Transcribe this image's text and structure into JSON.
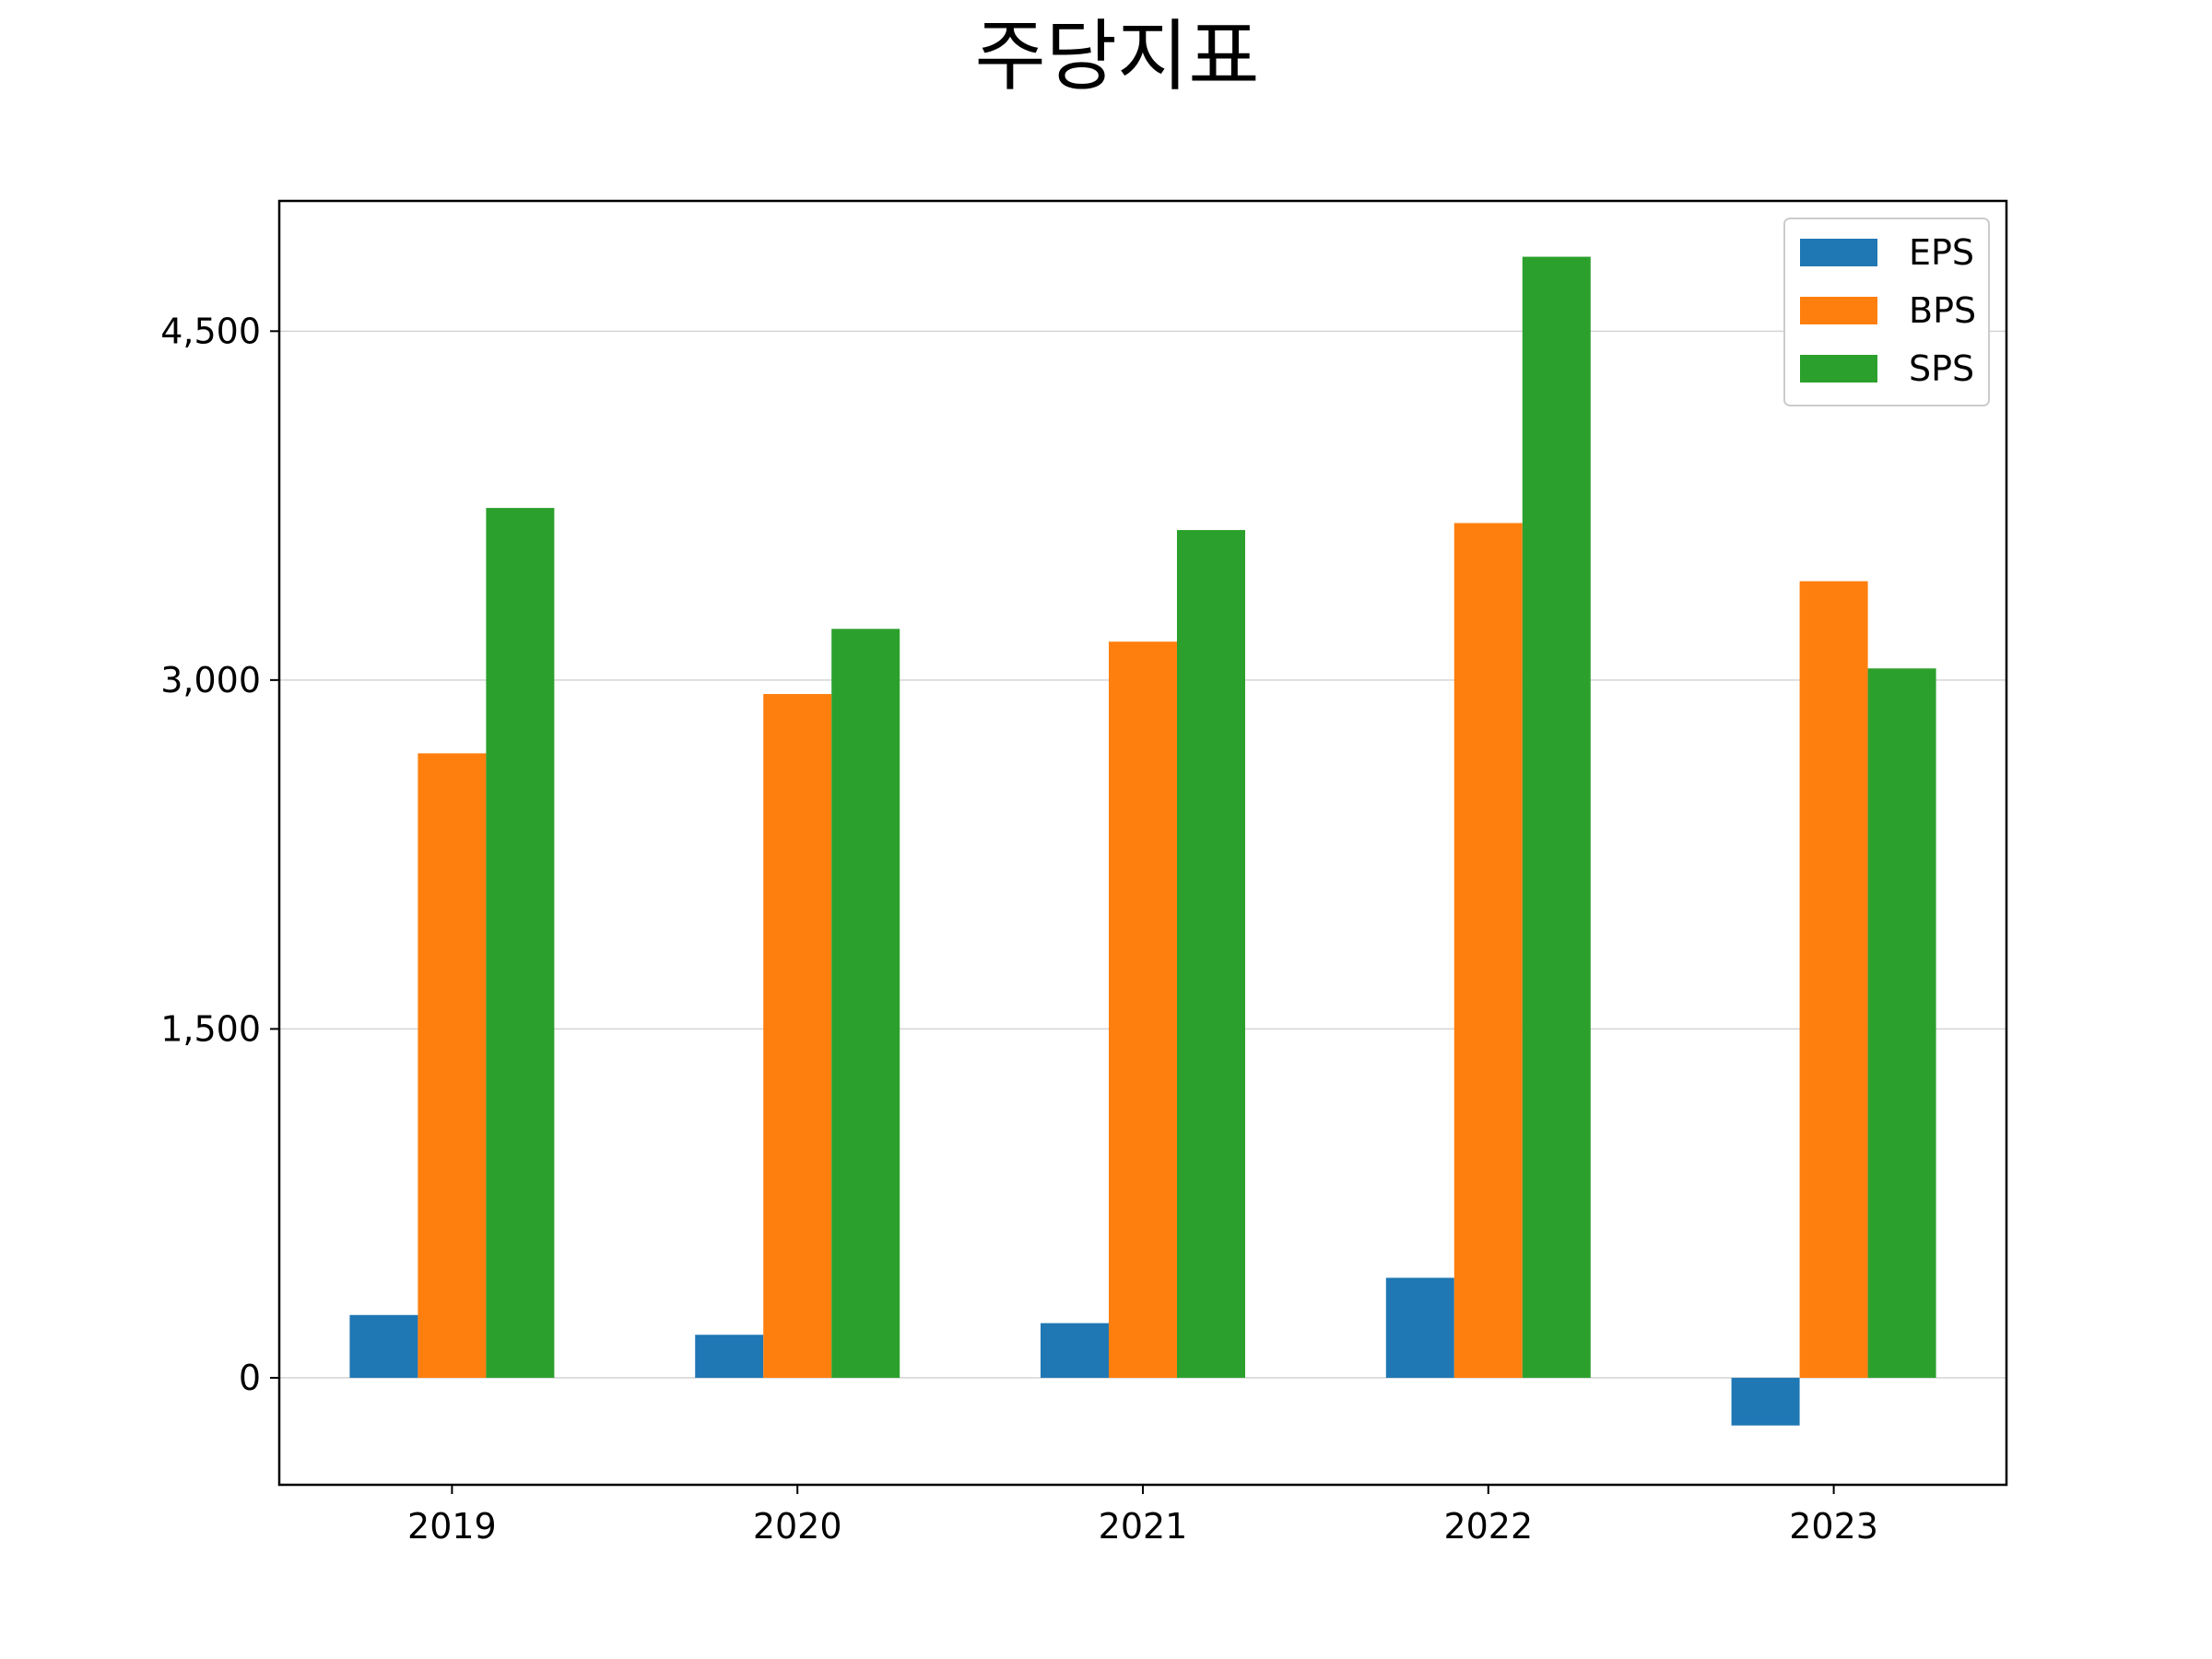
{
  "chart_data": {
    "type": "bar",
    "title": "주당지표",
    "xlabel": "",
    "ylabel": "",
    "categories": [
      "2019",
      "2020",
      "2021",
      "2022",
      "2023"
    ],
    "series": [
      {
        "name": "EPS",
        "color": "#1f77b4",
        "values": [
          270,
          185,
          235,
          430,
          -205
        ]
      },
      {
        "name": "BPS",
        "color": "#ff7f0e",
        "values": [
          2685,
          2940,
          3165,
          3675,
          3425
        ]
      },
      {
        "name": "SPS",
        "color": "#2ca02c",
        "values": [
          3740,
          3220,
          3645,
          4820,
          3050
        ]
      }
    ],
    "yticks": [
      0,
      1500,
      3000,
      4500
    ],
    "ytick_labels": [
      "0",
      "1,500",
      "3,000",
      "4,500"
    ],
    "ylim": [
      -460,
      5060
    ],
    "grid": "horizontal",
    "legend_position": "top-right"
  }
}
